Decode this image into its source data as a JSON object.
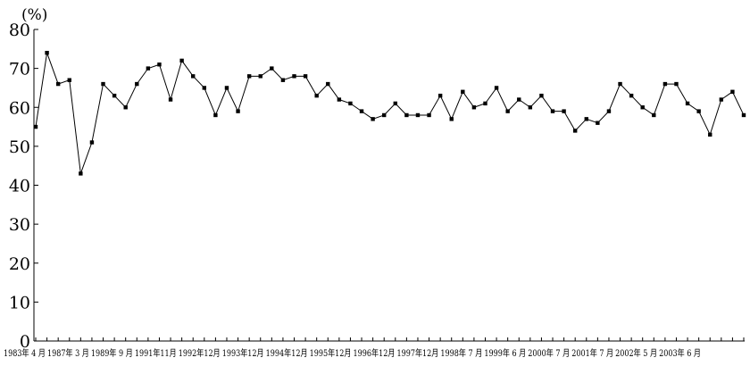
{
  "chart_data": {
    "type": "line",
    "title": "",
    "xlabel": "",
    "ylabel": "(%)",
    "ylim": [
      0,
      80
    ],
    "y_ticks": [
      0,
      10,
      20,
      30,
      40,
      50,
      60,
      70,
      80
    ],
    "grid": false,
    "legend": "none",
    "colors": {
      "line": "#000000",
      "marker": "#000000",
      "axis": "#000000"
    },
    "x_tick_labels": [
      "1983年 4 月",
      "1987年 3 月",
      "1989年 9 月",
      "1991年11月",
      "1992年12月",
      "1993年12月",
      "1994年12月",
      "1995年12月",
      "1996年12月",
      "1997年12月",
      "1998年 7 月",
      "1999年 6 月",
      "2000年 7 月",
      "2001年 7 月",
      "2002年 5 月",
      "2003年 6 月"
    ],
    "series": [
      {
        "values": [
          55,
          74,
          66,
          67,
          43,
          51,
          66,
          63,
          60,
          66,
          70,
          71,
          62,
          72,
          68,
          65,
          58,
          65,
          59,
          68,
          68,
          70,
          67,
          68,
          68,
          63,
          66,
          62,
          61,
          59,
          57,
          58,
          61,
          58,
          58,
          58,
          63,
          57,
          64,
          60,
          61,
          65,
          59,
          62,
          60,
          63,
          59,
          59,
          54,
          57,
          56,
          59,
          66,
          63,
          60,
          58,
          66,
          66,
          61,
          59,
          53,
          62,
          64,
          58
        ]
      }
    ]
  }
}
